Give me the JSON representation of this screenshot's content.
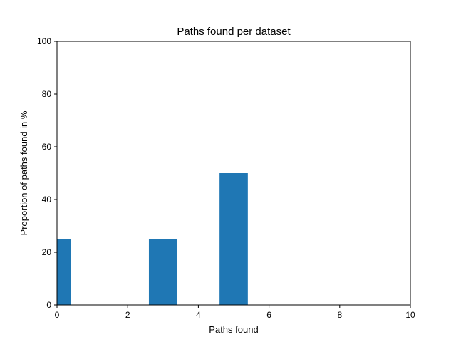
{
  "chart_data": {
    "type": "bar",
    "title": "Paths found per dataset",
    "xlabel": "Paths found",
    "ylabel": "Proportion of paths found in %",
    "xlim": [
      0,
      10
    ],
    "ylim": [
      0,
      100
    ],
    "xticks": [
      "0",
      "2",
      "4",
      "6",
      "8",
      "10"
    ],
    "yticks": [
      "0",
      "20",
      "40",
      "60",
      "80",
      "100"
    ],
    "bar_width": 0.8,
    "bars": [
      {
        "x": 0,
        "value": 25
      },
      {
        "x": 3,
        "value": 25
      },
      {
        "x": 5,
        "value": 50
      }
    ],
    "bar_color": "#1f77b4",
    "grid": false,
    "legend": "none"
  }
}
